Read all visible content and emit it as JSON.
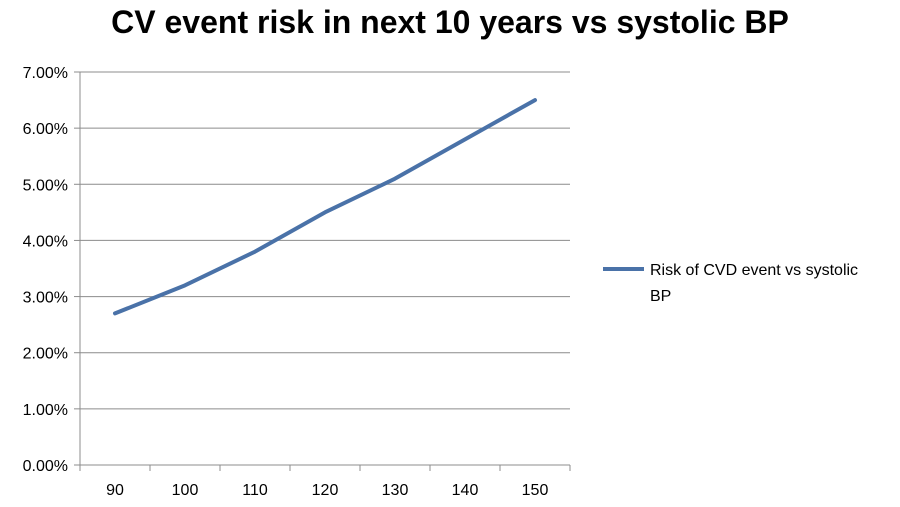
{
  "chart_data": {
    "type": "line",
    "title": "CV event risk in next 10 years vs systolic BP",
    "xlabel": "",
    "ylabel": "",
    "categories": [
      "90",
      "100",
      "110",
      "120",
      "130",
      "140",
      "150"
    ],
    "series": [
      {
        "name": "Risk of CVD event vs systolic BP",
        "values": [
          0.027,
          0.032,
          0.038,
          0.045,
          0.051,
          0.058,
          0.065
        ],
        "color": "#4A72A8"
      }
    ],
    "ylim": [
      0,
      0.07
    ],
    "yticks": [
      "0.00%",
      "1.00%",
      "2.00%",
      "3.00%",
      "4.00%",
      "5.00%",
      "6.00%",
      "7.00%"
    ],
    "legend_position": "right",
    "grid": true
  }
}
